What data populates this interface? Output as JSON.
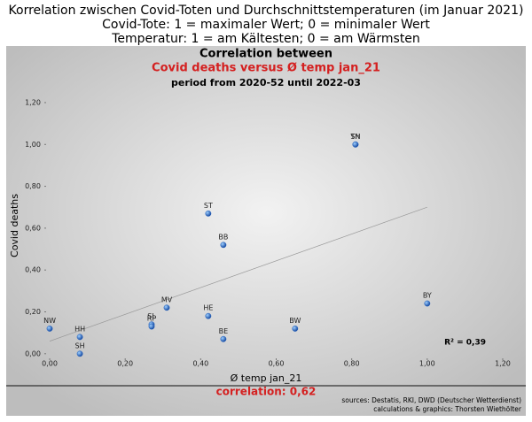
{
  "header": {
    "lines": [
      "Korrelation zwischen Covid-Toten und Durchschnittstemperaturen (im Januar 2021)",
      "Covid-Tote: 1 = maximaler Wert; 0 = minimaler Wert",
      "Temperatur: 1 = am Kältesten; 0 = am Wärmsten"
    ]
  },
  "chart_data": {
    "type": "scatter",
    "title": "Correlation between",
    "subtitle": "Covid deaths versus Ø temp jan_21",
    "period": "period from 2020-52 until 2022-03",
    "x_label": "Ø temp jan_21",
    "y_label": "Covid deaths",
    "color": "#1f5fbf",
    "labels": [
      "SN",
      "TH",
      "ST",
      "BB",
      "BY",
      "MV",
      "SL",
      "RP",
      "HE",
      "BE",
      "BW",
      "NW",
      "HH",
      "SH"
    ],
    "x": [
      0.81,
      0.81,
      0.42,
      0.46,
      1.0,
      0.31,
      0.27,
      0.27,
      0.42,
      0.46,
      0.65,
      0.0,
      0.08,
      0.08
    ],
    "y": [
      1.0,
      1.0,
      0.67,
      0.52,
      0.24,
      0.22,
      0.14,
      0.13,
      0.18,
      0.07,
      0.12,
      0.12,
      0.08,
      0.0
    ],
    "trendline": {
      "x": [
        0.0,
        1.0
      ],
      "y": [
        0.06,
        0.7
      ]
    },
    "xlim": [
      -0.04,
      1.22
    ],
    "ylim": [
      -0.06,
      1.24
    ],
    "xticks": [
      {
        "value": 0,
        "label": "0,00"
      },
      {
        "value": 0.2,
        "label": "0,20"
      },
      {
        "value": 0.4,
        "label": "0,40"
      },
      {
        "value": 0.6,
        "label": "0,60"
      },
      {
        "value": 0.8,
        "label": "0,80"
      },
      {
        "value": 1.0,
        "label": "1,00"
      },
      {
        "value": 1.2,
        "label": "1,20"
      }
    ],
    "yticks": [
      {
        "value": 0,
        "label": "0,00"
      },
      {
        "value": 0.2,
        "label": "0,20"
      },
      {
        "value": 0.4,
        "label": "0,40"
      },
      {
        "value": 0.6,
        "label": "0,60"
      },
      {
        "value": 0.8,
        "label": "0,80"
      },
      {
        "value": 1.0,
        "label": "1,00"
      },
      {
        "value": 1.2,
        "label": "1,20"
      }
    ],
    "r_squared": "R² = 0,39",
    "correlation": "correlation: 0,62",
    "sources": [
      "sources: Destatis, RKI, DWD (Deutscher Wetterdienst)",
      "calculations & graphics: Thorsten Wiethölter"
    ]
  }
}
